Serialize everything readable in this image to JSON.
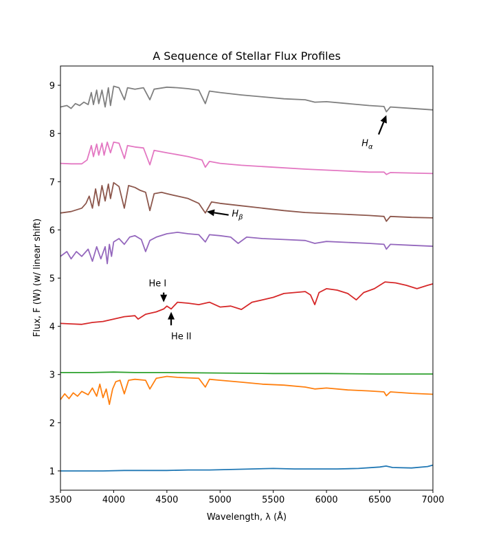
{
  "chart_data": {
    "type": "line",
    "title": "A Sequence of Stellar Flux Profiles",
    "xlabel": "Wavelength, λ (Å)",
    "ylabel": "Flux, F (W)  (w/ linear shift)",
    "xlim": [
      3500,
      7000
    ],
    "ylim": [
      0.6,
      9.4
    ],
    "xticks": [
      3500,
      4000,
      4500,
      5000,
      5500,
      6000,
      6500,
      7000
    ],
    "yticks": [
      1,
      2,
      3,
      4,
      5,
      6,
      7,
      8,
      9
    ],
    "grid": false,
    "series": [
      {
        "color": "#1f77b4",
        "points": [
          [
            3500,
            1.0
          ],
          [
            3700,
            1.0
          ],
          [
            3900,
            1.0
          ],
          [
            4100,
            1.01
          ],
          [
            4300,
            1.01
          ],
          [
            4500,
            1.01
          ],
          [
            4700,
            1.02
          ],
          [
            4900,
            1.02
          ],
          [
            5100,
            1.03
          ],
          [
            5300,
            1.04
          ],
          [
            5500,
            1.05
          ],
          [
            5700,
            1.04
          ],
          [
            5900,
            1.04
          ],
          [
            6100,
            1.04
          ],
          [
            6300,
            1.05
          ],
          [
            6500,
            1.08
          ],
          [
            6560,
            1.1
          ],
          [
            6620,
            1.07
          ],
          [
            6800,
            1.06
          ],
          [
            6950,
            1.09
          ],
          [
            7000,
            1.12
          ]
        ]
      },
      {
        "color": "#ff7f0e",
        "points": [
          [
            3500,
            2.48
          ],
          [
            3540,
            2.6
          ],
          [
            3580,
            2.5
          ],
          [
            3620,
            2.62
          ],
          [
            3660,
            2.55
          ],
          [
            3700,
            2.65
          ],
          [
            3760,
            2.58
          ],
          [
            3800,
            2.72
          ],
          [
            3840,
            2.55
          ],
          [
            3870,
            2.8
          ],
          [
            3900,
            2.52
          ],
          [
            3930,
            2.7
          ],
          [
            3960,
            2.38
          ],
          [
            3990,
            2.7
          ],
          [
            4020,
            2.85
          ],
          [
            4060,
            2.88
          ],
          [
            4100,
            2.6
          ],
          [
            4140,
            2.88
          ],
          [
            4200,
            2.9
          ],
          [
            4300,
            2.88
          ],
          [
            4340,
            2.7
          ],
          [
            4400,
            2.92
          ],
          [
            4500,
            2.96
          ],
          [
            4600,
            2.94
          ],
          [
            4700,
            2.93
          ],
          [
            4800,
            2.92
          ],
          [
            4861,
            2.74
          ],
          [
            4900,
            2.9
          ],
          [
            5000,
            2.88
          ],
          [
            5200,
            2.84
          ],
          [
            5400,
            2.8
          ],
          [
            5600,
            2.78
          ],
          [
            5800,
            2.74
          ],
          [
            5890,
            2.7
          ],
          [
            6000,
            2.72
          ],
          [
            6200,
            2.68
          ],
          [
            6400,
            2.66
          ],
          [
            6540,
            2.64
          ],
          [
            6563,
            2.56
          ],
          [
            6600,
            2.64
          ],
          [
            6800,
            2.61
          ],
          [
            7000,
            2.59
          ]
        ]
      },
      {
        "color": "#2ca02c",
        "points": [
          [
            3500,
            3.04
          ],
          [
            3800,
            3.04
          ],
          [
            4000,
            3.05
          ],
          [
            4200,
            3.04
          ],
          [
            4500,
            3.04
          ],
          [
            5000,
            3.03
          ],
          [
            5500,
            3.02
          ],
          [
            6000,
            3.02
          ],
          [
            6500,
            3.01
          ],
          [
            7000,
            3.01
          ]
        ]
      },
      {
        "color": "#d62728",
        "points": [
          [
            3500,
            4.06
          ],
          [
            3600,
            4.05
          ],
          [
            3700,
            4.04
          ],
          [
            3800,
            4.08
          ],
          [
            3900,
            4.1
          ],
          [
            4000,
            4.15
          ],
          [
            4100,
            4.2
          ],
          [
            4200,
            4.22
          ],
          [
            4230,
            4.15
          ],
          [
            4300,
            4.25
          ],
          [
            4400,
            4.3
          ],
          [
            4470,
            4.36
          ],
          [
            4500,
            4.42
          ],
          [
            4540,
            4.36
          ],
          [
            4600,
            4.5
          ],
          [
            4700,
            4.48
          ],
          [
            4800,
            4.45
          ],
          [
            4900,
            4.5
          ],
          [
            5000,
            4.4
          ],
          [
            5100,
            4.42
          ],
          [
            5200,
            4.35
          ],
          [
            5300,
            4.5
          ],
          [
            5400,
            4.55
          ],
          [
            5500,
            4.6
          ],
          [
            5600,
            4.68
          ],
          [
            5700,
            4.7
          ],
          [
            5800,
            4.72
          ],
          [
            5850,
            4.65
          ],
          [
            5890,
            4.45
          ],
          [
            5930,
            4.7
          ],
          [
            6000,
            4.78
          ],
          [
            6100,
            4.75
          ],
          [
            6200,
            4.68
          ],
          [
            6280,
            4.55
          ],
          [
            6350,
            4.7
          ],
          [
            6450,
            4.78
          ],
          [
            6550,
            4.92
          ],
          [
            6650,
            4.9
          ],
          [
            6750,
            4.85
          ],
          [
            6850,
            4.78
          ],
          [
            6950,
            4.85
          ],
          [
            7000,
            4.88
          ]
        ]
      },
      {
        "color": "#9467bd",
        "points": [
          [
            3500,
            5.45
          ],
          [
            3560,
            5.55
          ],
          [
            3600,
            5.4
          ],
          [
            3650,
            5.55
          ],
          [
            3700,
            5.45
          ],
          [
            3760,
            5.6
          ],
          [
            3800,
            5.35
          ],
          [
            3840,
            5.65
          ],
          [
            3880,
            5.4
          ],
          [
            3920,
            5.65
          ],
          [
            3940,
            5.3
          ],
          [
            3960,
            5.7
          ],
          [
            3980,
            5.45
          ],
          [
            4000,
            5.75
          ],
          [
            4050,
            5.82
          ],
          [
            4100,
            5.7
          ],
          [
            4150,
            5.85
          ],
          [
            4200,
            5.88
          ],
          [
            4260,
            5.8
          ],
          [
            4300,
            5.55
          ],
          [
            4340,
            5.78
          ],
          [
            4400,
            5.85
          ],
          [
            4500,
            5.92
          ],
          [
            4600,
            5.95
          ],
          [
            4700,
            5.92
          ],
          [
            4800,
            5.9
          ],
          [
            4861,
            5.75
          ],
          [
            4900,
            5.9
          ],
          [
            5000,
            5.88
          ],
          [
            5100,
            5.85
          ],
          [
            5170,
            5.72
          ],
          [
            5250,
            5.85
          ],
          [
            5400,
            5.82
          ],
          [
            5600,
            5.8
          ],
          [
            5800,
            5.78
          ],
          [
            5890,
            5.72
          ],
          [
            6000,
            5.76
          ],
          [
            6200,
            5.74
          ],
          [
            6400,
            5.72
          ],
          [
            6540,
            5.7
          ],
          [
            6563,
            5.6
          ],
          [
            6600,
            5.7
          ],
          [
            6800,
            5.68
          ],
          [
            7000,
            5.66
          ]
        ]
      },
      {
        "color": "#8c564b",
        "points": [
          [
            3500,
            6.35
          ],
          [
            3600,
            6.38
          ],
          [
            3700,
            6.45
          ],
          [
            3740,
            6.55
          ],
          [
            3770,
            6.7
          ],
          [
            3800,
            6.45
          ],
          [
            3830,
            6.85
          ],
          [
            3860,
            6.5
          ],
          [
            3890,
            6.92
          ],
          [
            3920,
            6.6
          ],
          [
            3950,
            6.95
          ],
          [
            3970,
            6.65
          ],
          [
            4000,
            6.98
          ],
          [
            4050,
            6.9
          ],
          [
            4100,
            6.45
          ],
          [
            4140,
            6.92
          ],
          [
            4200,
            6.88
          ],
          [
            4250,
            6.82
          ],
          [
            4300,
            6.78
          ],
          [
            4340,
            6.4
          ],
          [
            4380,
            6.75
          ],
          [
            4450,
            6.78
          ],
          [
            4500,
            6.75
          ],
          [
            4600,
            6.7
          ],
          [
            4700,
            6.65
          ],
          [
            4800,
            6.55
          ],
          [
            4861,
            6.35
          ],
          [
            4920,
            6.58
          ],
          [
            5000,
            6.55
          ],
          [
            5200,
            6.5
          ],
          [
            5400,
            6.45
          ],
          [
            5600,
            6.4
          ],
          [
            5800,
            6.36
          ],
          [
            6000,
            6.34
          ],
          [
            6200,
            6.32
          ],
          [
            6400,
            6.3
          ],
          [
            6540,
            6.28
          ],
          [
            6563,
            6.18
          ],
          [
            6600,
            6.28
          ],
          [
            6800,
            6.26
          ],
          [
            7000,
            6.25
          ]
        ]
      },
      {
        "color": "#e377c2",
        "points": [
          [
            3500,
            7.38
          ],
          [
            3600,
            7.37
          ],
          [
            3700,
            7.37
          ],
          [
            3750,
            7.45
          ],
          [
            3790,
            7.75
          ],
          [
            3810,
            7.52
          ],
          [
            3840,
            7.78
          ],
          [
            3860,
            7.55
          ],
          [
            3890,
            7.8
          ],
          [
            3910,
            7.55
          ],
          [
            3940,
            7.82
          ],
          [
            3970,
            7.6
          ],
          [
            4000,
            7.82
          ],
          [
            4050,
            7.8
          ],
          [
            4101,
            7.48
          ],
          [
            4130,
            7.75
          ],
          [
            4200,
            7.72
          ],
          [
            4280,
            7.7
          ],
          [
            4340,
            7.35
          ],
          [
            4380,
            7.65
          ],
          [
            4500,
            7.6
          ],
          [
            4700,
            7.52
          ],
          [
            4830,
            7.45
          ],
          [
            4861,
            7.3
          ],
          [
            4900,
            7.42
          ],
          [
            5000,
            7.38
          ],
          [
            5200,
            7.34
          ],
          [
            5500,
            7.3
          ],
          [
            5800,
            7.26
          ],
          [
            6100,
            7.23
          ],
          [
            6400,
            7.2
          ],
          [
            6540,
            7.2
          ],
          [
            6563,
            7.15
          ],
          [
            6600,
            7.19
          ],
          [
            7000,
            7.17
          ]
        ]
      },
      {
        "color": "#7f7f7f",
        "points": [
          [
            3500,
            8.55
          ],
          [
            3560,
            8.58
          ],
          [
            3600,
            8.52
          ],
          [
            3640,
            8.62
          ],
          [
            3680,
            8.58
          ],
          [
            3720,
            8.65
          ],
          [
            3760,
            8.6
          ],
          [
            3790,
            8.85
          ],
          [
            3810,
            8.6
          ],
          [
            3840,
            8.9
          ],
          [
            3860,
            8.62
          ],
          [
            3890,
            8.9
          ],
          [
            3920,
            8.55
          ],
          [
            3950,
            8.95
          ],
          [
            3970,
            8.58
          ],
          [
            4000,
            8.98
          ],
          [
            4050,
            8.95
          ],
          [
            4101,
            8.7
          ],
          [
            4130,
            8.95
          ],
          [
            4200,
            8.92
          ],
          [
            4280,
            8.95
          ],
          [
            4340,
            8.7
          ],
          [
            4380,
            8.92
          ],
          [
            4500,
            8.96
          ],
          [
            4600,
            8.95
          ],
          [
            4700,
            8.93
          ],
          [
            4800,
            8.9
          ],
          [
            4861,
            8.62
          ],
          [
            4900,
            8.88
          ],
          [
            5000,
            8.85
          ],
          [
            5200,
            8.8
          ],
          [
            5400,
            8.76
          ],
          [
            5600,
            8.72
          ],
          [
            5800,
            8.7
          ],
          [
            5890,
            8.65
          ],
          [
            6000,
            8.66
          ],
          [
            6200,
            8.62
          ],
          [
            6400,
            8.58
          ],
          [
            6540,
            8.56
          ],
          [
            6563,
            8.45
          ],
          [
            6600,
            8.55
          ],
          [
            6800,
            8.52
          ],
          [
            7000,
            8.49
          ]
        ]
      }
    ],
    "annotations": [
      {
        "id": "h-alpha",
        "label_base": "H",
        "label_sub": "α",
        "arrow_to": [
          6563,
          8.38
        ],
        "arrow_from": [
          6490,
          7.98
        ],
        "text_at": [
          6330,
          7.74
        ]
      },
      {
        "id": "h-beta",
        "label_base": "H",
        "label_sub": "β",
        "arrow_to": [
          4875,
          6.38
        ],
        "arrow_from": [
          5080,
          6.31
        ],
        "text_at": [
          5110,
          6.28
        ]
      },
      {
        "id": "he-i",
        "label": "He I",
        "arrow_to": [
          4470,
          4.5
        ],
        "arrow_from": [
          4470,
          4.7
        ],
        "text_at": [
          4330,
          4.83
        ]
      },
      {
        "id": "he-ii",
        "label": "He II",
        "arrow_to": [
          4540,
          4.3
        ],
        "arrow_from": [
          4540,
          4.02
        ],
        "text_at": [
          4540,
          3.73
        ]
      }
    ]
  }
}
